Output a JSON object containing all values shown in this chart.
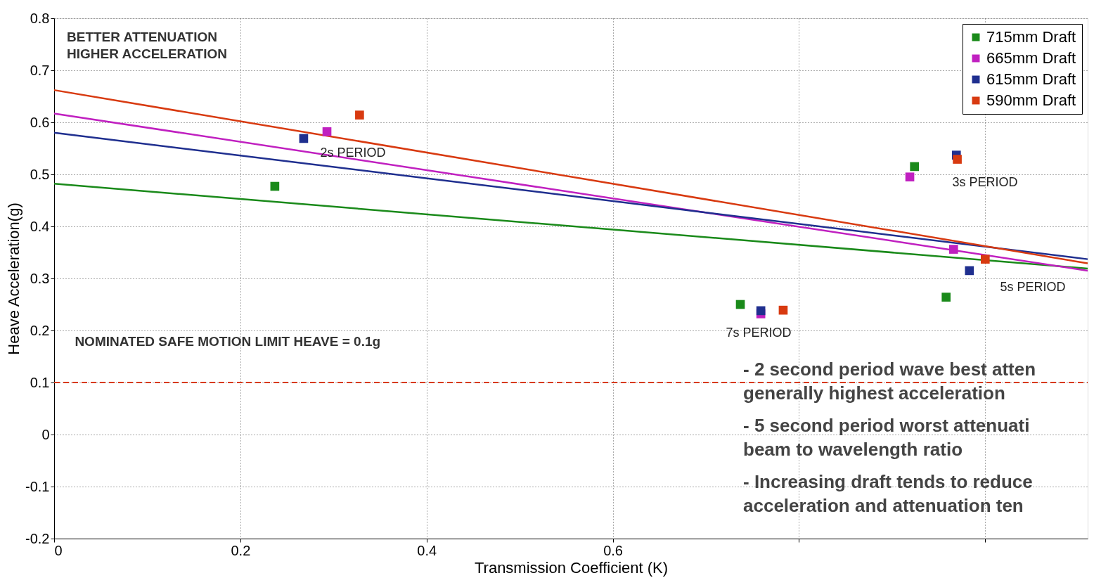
{
  "chart_data": {
    "type": "scatter",
    "xlabel": "Transmission Coefficient (K)",
    "ylabel": "Heave Acceleration(g)",
    "xlim": [
      0,
      1.11
    ],
    "ylim": [
      -0.2,
      0.8
    ],
    "xticks": [
      0,
      0.2,
      0.4,
      0.6,
      {
        "value": 0.8,
        "label": null
      },
      {
        "value": 1.0,
        "label": null
      }
    ],
    "yticks": [
      -0.2,
      -0.1,
      0,
      0.1,
      0.2,
      0.3,
      0.4,
      0.5,
      0.6,
      0.7,
      0.8
    ],
    "grid": true,
    "legend": "top right",
    "marker": "square",
    "series": [
      {
        "name": "715mm Draft",
        "color": "#1a8a1a",
        "x": [
          0.237,
          0.737,
          0.924,
          0.958
        ],
        "values": [
          0.477,
          0.25,
          0.515,
          0.264
        ]
      },
      {
        "name": "665mm Draft",
        "color": "#c020c0",
        "x": [
          0.293,
          0.759,
          0.919,
          0.966
        ],
        "values": [
          0.582,
          0.232,
          0.495,
          0.356
        ]
      },
      {
        "name": "615mm Draft",
        "color": "#1f2f8f",
        "x": [
          0.268,
          0.759,
          0.969,
          0.983
        ],
        "values": [
          0.569,
          0.238,
          0.537,
          0.315
        ]
      },
      {
        "name": "590mm Draft",
        "color": "#d83a10",
        "x": [
          0.328,
          0.783,
          0.97,
          1.0
        ],
        "values": [
          0.614,
          0.239,
          0.529,
          0.337
        ]
      },
      {
        "type": "line",
        "marker": "none",
        "color": "#1a8a1a",
        "x": [
          0,
          1.11
        ],
        "values": [
          0.482,
          0.319
        ]
      },
      {
        "type": "line",
        "marker": "none",
        "color": "#c020c0",
        "x": [
          0,
          1.11
        ],
        "values": [
          0.617,
          0.315
        ]
      },
      {
        "type": "line",
        "marker": "none",
        "color": "#1f2f8f",
        "x": [
          0,
          1.11
        ],
        "values": [
          0.58,
          0.337
        ]
      },
      {
        "type": "line",
        "marker": "none",
        "color": "#d83a10",
        "x": [
          0,
          1.11
        ],
        "values": [
          0.662,
          0.329
        ]
      }
    ],
    "ref_lines": [
      {
        "axis": "y",
        "value": 0.1,
        "label": "NOMINATED SAFE MOTION LIMIT HEAVE = 0.1g",
        "color": "#d83a10",
        "line_style": "dashed"
      }
    ],
    "annotations": [
      "BETTER ATTENUATION\nHIGHER ACCELERATION",
      "-  2 second period wave best atten\n    generally highest acceleration",
      "-  5 second period worst attenuati\n    beam to wavelength ratio",
      "-  Increasing draft tends to reduce\n    acceleration and attenuation ten",
      "2s PERIOD",
      "3s PERIOD",
      "5s PERIOD",
      "7s PERIOD"
    ]
  }
}
